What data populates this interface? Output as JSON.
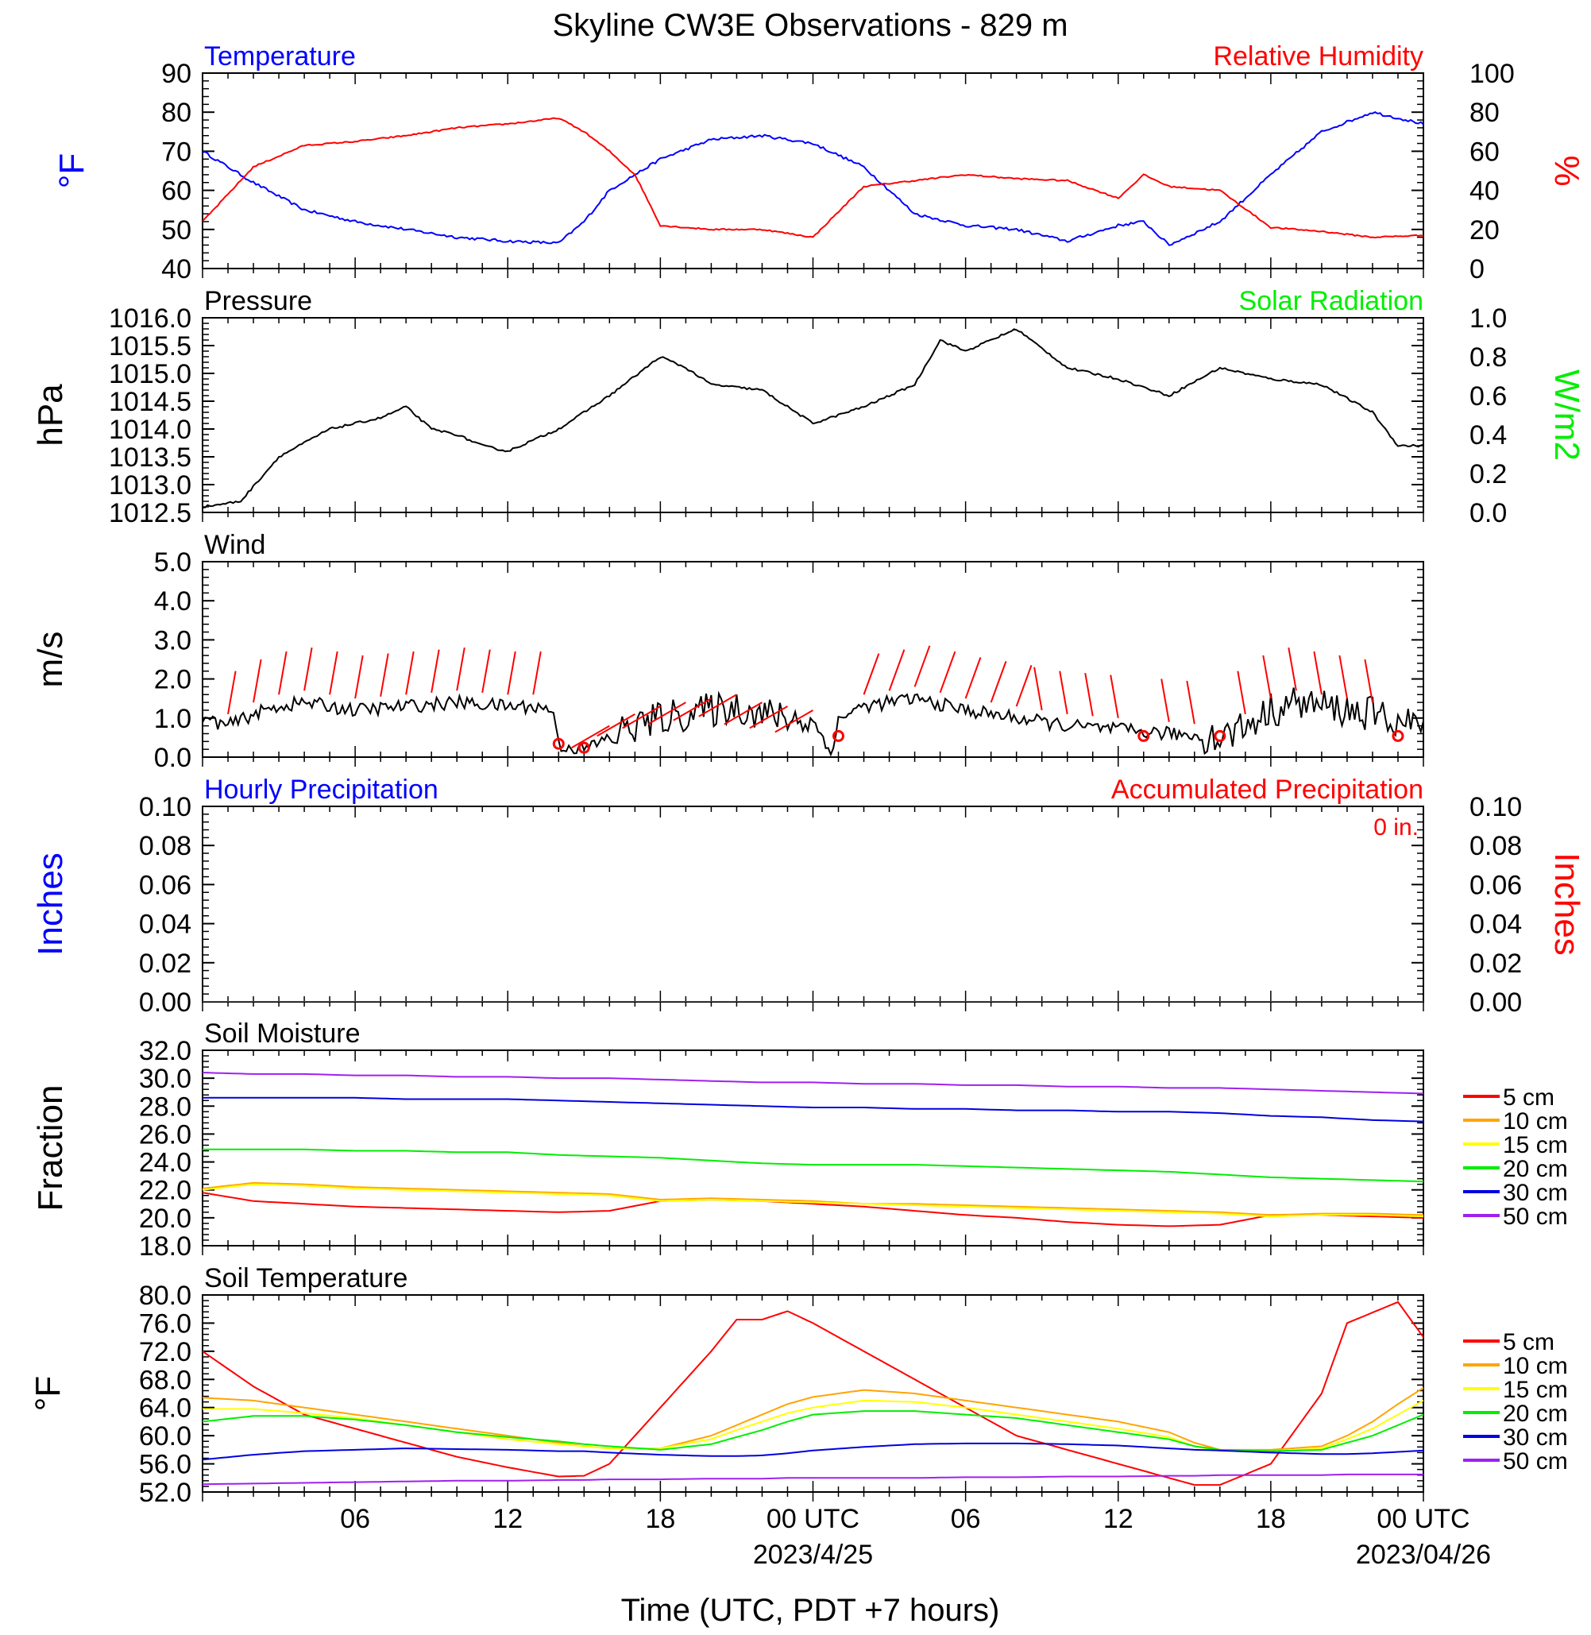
{
  "title": "Skyline CW3E Observations - 829 m",
  "xaxis": {
    "label": "Time (UTC, PDT +7 hours)",
    "tick_labels": [
      "06",
      "12",
      "18",
      "00 UTC",
      "06",
      "12",
      "18",
      "00 UTC"
    ],
    "date_labels": [
      "2023/4/25",
      "2023/04/26"
    ]
  },
  "colors": {
    "black": "#000000",
    "blue": "#0000ff",
    "red": "#ff0000",
    "green": "#00ee00",
    "orange": "#ffa500",
    "yellow": "#ffff00",
    "darkblue": "#0000e0",
    "purple": "#a020f0"
  },
  "chart_data": [
    {
      "id": "temp-rh",
      "type": "line",
      "left_title": "Temperature",
      "right_title": "Relative Humidity",
      "ylabel": "°F",
      "y2label": "%",
      "ylim": [
        40,
        90
      ],
      "y2lim": [
        0,
        100
      ],
      "yticks": [
        "90",
        "80",
        "70",
        "60",
        "50",
        "40"
      ],
      "y2ticks": [
        "100",
        "80",
        "60",
        "40",
        "20",
        "0"
      ],
      "x_hours": [
        0,
        2,
        4,
        6,
        8,
        10,
        12,
        14,
        15,
        16,
        17,
        18,
        20,
        22,
        24,
        26,
        28,
        30,
        32,
        34,
        36,
        37,
        38,
        40,
        42,
        44,
        46,
        48
      ],
      "series": [
        {
          "name": "Temperature",
          "axis": "left",
          "color": "#0000ff",
          "values": [
            70,
            62,
            55,
            52,
            50,
            48,
            47,
            46.5,
            52,
            60,
            64,
            68,
            73,
            74,
            72,
            66,
            54,
            51,
            50,
            47,
            51,
            52,
            46,
            52,
            64,
            75,
            80,
            77
          ]
        },
        {
          "name": "Relative Humidity",
          "axis": "right",
          "color": "#ff0000",
          "values": [
            24,
            52,
            63,
            65,
            68,
            72,
            74,
            77,
            70,
            60,
            48,
            22,
            20,
            20,
            16,
            42,
            45,
            48,
            46,
            45,
            36,
            48,
            42,
            40,
            21,
            19,
            16,
            17
          ]
        }
      ]
    },
    {
      "id": "pressure",
      "type": "line",
      "left_title": "Pressure",
      "right_title": "Solar Radiation",
      "ylabel": "hPa",
      "y2label": "W/m2",
      "ylim": [
        1012.5,
        1016.0
      ],
      "y2lim": [
        0.0,
        1.0
      ],
      "yticks": [
        "1016.0",
        "1015.5",
        "1015.0",
        "1014.5",
        "1014.0",
        "1013.5",
        "1013.0",
        "1012.5"
      ],
      "y2ticks": [
        "1.0",
        "0.8",
        "0.6",
        "0.4",
        "0.2",
        "0.0"
      ],
      "x_hours": [
        0,
        1.5,
        3,
        5,
        7,
        8,
        9,
        10,
        11,
        12,
        14,
        16,
        18,
        19,
        20,
        22,
        24,
        26,
        28,
        29,
        30,
        31,
        32,
        34,
        36,
        38,
        40,
        42,
        44,
        46,
        47,
        48
      ],
      "series": [
        {
          "name": "Pressure",
          "axis": "left",
          "color": "#000000",
          "values": [
            1012.6,
            1012.7,
            1013.5,
            1014.0,
            1014.2,
            1014.4,
            1014.0,
            1013.9,
            1013.7,
            1013.6,
            1014.0,
            1014.6,
            1015.3,
            1015.1,
            1014.8,
            1014.7,
            1014.1,
            1014.4,
            1014.8,
            1015.6,
            1015.4,
            1015.6,
            1015.8,
            1015.1,
            1014.9,
            1014.6,
            1015.1,
            1014.9,
            1014.8,
            1014.3,
            1013.7,
            1013.7
          ]
        }
      ]
    },
    {
      "id": "wind",
      "type": "line",
      "left_title": "Wind",
      "ylabel": "m/s",
      "ylim": [
        0.0,
        5.0
      ],
      "yticks": [
        "5.0",
        "4.0",
        "3.0",
        "2.0",
        "1.0",
        "0.0"
      ],
      "x_hours": [
        0,
        1,
        2,
        3,
        4,
        5,
        6,
        8,
        10,
        12,
        13,
        13.8,
        14,
        15,
        16,
        17,
        18,
        19,
        20,
        21,
        22,
        23,
        24,
        24.8,
        25,
        26,
        28,
        30,
        32,
        33,
        34,
        36,
        38,
        40,
        41,
        42,
        43,
        44,
        45,
        46,
        47,
        48
      ],
      "series": [
        {
          "name": "Wind speed",
          "axis": "left",
          "color": "#000000",
          "values": [
            1.0,
            0.8,
            1.1,
            1.3,
            1.4,
            1.3,
            1.2,
            1.3,
            1.4,
            1.3,
            1.3,
            1.2,
            0.3,
            0.2,
            0.5,
            0.8,
            1.0,
            1.1,
            1.2,
            1.3,
            1.1,
            1.0,
            0.9,
            0.1,
            1.0,
            1.3,
            1.5,
            1.2,
            1.0,
            0.9,
            0.8,
            0.7,
            0.6,
            0.5,
            0.8,
            1.2,
            1.4,
            1.3,
            1.2,
            1.1,
            0.9,
            0.8
          ]
        }
      ],
      "calm_hours": [
        14,
        15,
        25,
        37,
        40,
        47
      ]
    },
    {
      "id": "precip",
      "type": "line",
      "left_title": "Hourly Precipitation",
      "right_title": "Accumulated Precipitation",
      "annotation": "0 in.",
      "ylabel": "Inches",
      "y2label": "Inches",
      "ylim": [
        0.0,
        0.1
      ],
      "y2lim": [
        0.0,
        0.1
      ],
      "yticks": [
        "0.10",
        "0.08",
        "0.06",
        "0.04",
        "0.02",
        "0.00"
      ],
      "y2ticks": [
        "0.10",
        "0.08",
        "0.06",
        "0.04",
        "0.02",
        "0.00"
      ],
      "x_hours": [
        0,
        48
      ],
      "series": [
        {
          "name": "Hourly Precipitation",
          "axis": "left",
          "color": "#0000ff",
          "values": [
            0,
            0
          ]
        },
        {
          "name": "Accumulated Precipitation",
          "axis": "right",
          "color": "#ff0000",
          "values": [
            0,
            0
          ]
        }
      ]
    },
    {
      "id": "soil-moisture",
      "type": "line",
      "left_title": "Soil Moisture",
      "ylabel": "Fraction",
      "ylim": [
        18.0,
        32.0
      ],
      "yticks": [
        "32.0",
        "30.0",
        "28.0",
        "26.0",
        "24.0",
        "22.0",
        "20.0",
        "18.0"
      ],
      "x_hours": [
        0,
        2,
        4,
        6,
        8,
        10,
        12,
        14,
        16,
        18,
        20,
        22,
        24,
        26,
        28,
        30,
        32,
        34,
        36,
        38,
        40,
        42,
        44,
        46,
        48
      ],
      "legend": [
        "5 cm",
        "10 cm",
        "15 cm",
        "20 cm",
        "30 cm",
        "50 cm"
      ],
      "series": [
        {
          "name": "5 cm",
          "color": "#ff0000",
          "values": [
            21.8,
            21.2,
            21.0,
            20.8,
            20.7,
            20.6,
            20.5,
            20.4,
            20.5,
            21.2,
            21.3,
            21.2,
            21.0,
            20.8,
            20.5,
            20.2,
            20.0,
            19.7,
            19.5,
            19.4,
            19.5,
            20.2,
            20.2,
            20.1,
            20.0
          ]
        },
        {
          "name": "10 cm",
          "color": "#ffa500",
          "values": [
            22.1,
            22.5,
            22.4,
            22.2,
            22.1,
            22.0,
            21.9,
            21.8,
            21.7,
            21.3,
            21.4,
            21.3,
            21.2,
            21.0,
            21.0,
            20.9,
            20.8,
            20.7,
            20.6,
            20.5,
            20.4,
            20.2,
            20.3,
            20.3,
            20.2
          ]
        },
        {
          "name": "15 cm",
          "color": "#ffff00",
          "values": [
            22.0,
            22.4,
            22.3,
            22.1,
            22.0,
            21.9,
            21.8,
            21.7,
            21.6,
            21.2,
            21.3,
            21.2,
            21.1,
            21.0,
            20.9,
            20.8,
            20.7,
            20.6,
            20.5,
            20.4,
            20.3,
            20.1,
            20.2,
            20.2,
            20.1
          ]
        },
        {
          "name": "20 cm",
          "color": "#00ee00",
          "values": [
            24.9,
            24.9,
            24.9,
            24.8,
            24.8,
            24.7,
            24.7,
            24.5,
            24.4,
            24.3,
            24.1,
            23.9,
            23.8,
            23.8,
            23.8,
            23.7,
            23.6,
            23.5,
            23.4,
            23.3,
            23.1,
            22.9,
            22.8,
            22.7,
            22.6
          ]
        },
        {
          "name": "30 cm",
          "color": "#0000e0",
          "values": [
            28.6,
            28.6,
            28.6,
            28.6,
            28.5,
            28.5,
            28.5,
            28.4,
            28.3,
            28.2,
            28.1,
            28.0,
            27.9,
            27.9,
            27.8,
            27.8,
            27.7,
            27.7,
            27.6,
            27.6,
            27.5,
            27.3,
            27.2,
            27.0,
            26.9
          ]
        },
        {
          "name": "50 cm",
          "color": "#a020f0",
          "values": [
            30.4,
            30.3,
            30.3,
            30.2,
            30.2,
            30.1,
            30.1,
            30.0,
            30.0,
            29.9,
            29.8,
            29.7,
            29.7,
            29.6,
            29.6,
            29.5,
            29.5,
            29.4,
            29.4,
            29.3,
            29.3,
            29.2,
            29.1,
            29.0,
            28.9
          ]
        }
      ]
    },
    {
      "id": "soil-temperature",
      "type": "line",
      "left_title": "Soil Temperature",
      "ylabel": "°F",
      "ylim": [
        52.0,
        80.0
      ],
      "yticks": [
        "80.0",
        "76.0",
        "72.0",
        "68.0",
        "64.0",
        "60.0",
        "56.0",
        "52.0"
      ],
      "x_hours": [
        0,
        2,
        4,
        6,
        8,
        10,
        12,
        14,
        15,
        16,
        18,
        20,
        21,
        22,
        23,
        24,
        26,
        28,
        30,
        32,
        34,
        36,
        38,
        39,
        40,
        42,
        44,
        45,
        46,
        47,
        48
      ],
      "legend": [
        "5 cm",
        "10 cm",
        "15 cm",
        "20 cm",
        "30 cm",
        "50 cm"
      ],
      "series": [
        {
          "name": "5 cm",
          "color": "#ff0000",
          "values": [
            72,
            67,
            63,
            61,
            59,
            57,
            55.5,
            54.2,
            54.3,
            56,
            64,
            72,
            76.5,
            76.5,
            77.7,
            76,
            72,
            68,
            64,
            60,
            58,
            56,
            54,
            53,
            53,
            56,
            66,
            76,
            77.5,
            79,
            74
          ]
        },
        {
          "name": "10 cm",
          "color": "#ffa500",
          "values": [
            65.4,
            65,
            64,
            63,
            62,
            61,
            60,
            59,
            58.5,
            58.2,
            58.2,
            60,
            61.5,
            63,
            64.5,
            65.5,
            66.5,
            66,
            65,
            64,
            63,
            62,
            60.5,
            59,
            58,
            58,
            58.5,
            60,
            62,
            64.5,
            66.8
          ]
        },
        {
          "name": "15 cm",
          "color": "#ffff00",
          "values": [
            63.8,
            63.8,
            63.2,
            62.5,
            61.5,
            60.5,
            59.5,
            58.8,
            58.5,
            58.2,
            58.2,
            59.5,
            60.8,
            62,
            63.2,
            64,
            65,
            64.8,
            64,
            63,
            62,
            61,
            59.8,
            58.5,
            57.8,
            57.8,
            58.2,
            59.5,
            61,
            63,
            65
          ]
        },
        {
          "name": "20 cm",
          "color": "#00ee00",
          "values": [
            62,
            62.8,
            62.8,
            62.3,
            61.5,
            60.5,
            59.8,
            59.2,
            58.8,
            58.5,
            58,
            58.8,
            59.8,
            60.8,
            62,
            63,
            63.5,
            63.5,
            63,
            62.5,
            61.5,
            60.5,
            59.5,
            58.5,
            58,
            57.8,
            58,
            59,
            60,
            61.5,
            63
          ]
        },
        {
          "name": "30 cm",
          "color": "#0000e0",
          "values": [
            56.6,
            57.3,
            57.8,
            58,
            58.2,
            58.1,
            58,
            57.8,
            57.8,
            57.6,
            57.3,
            57.1,
            57.1,
            57.2,
            57.5,
            57.9,
            58.4,
            58.8,
            58.9,
            58.9,
            58.8,
            58.6,
            58.2,
            58,
            57.9,
            57.6,
            57.4,
            57.4,
            57.5,
            57.7,
            57.9
          ]
        },
        {
          "name": "50 cm",
          "color": "#a020f0",
          "values": [
            53.1,
            53.2,
            53.3,
            53.4,
            53.5,
            53.6,
            53.6,
            53.7,
            53.7,
            53.8,
            53.8,
            53.9,
            53.9,
            53.9,
            54,
            54,
            54,
            54,
            54.1,
            54.1,
            54.2,
            54.2,
            54.3,
            54.3,
            54.4,
            54.4,
            54.4,
            54.5,
            54.5,
            54.5,
            54.5
          ]
        }
      ]
    }
  ]
}
